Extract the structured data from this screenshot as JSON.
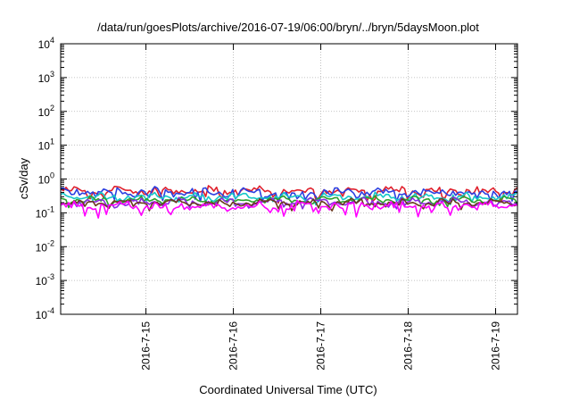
{
  "chart_data": {
    "type": "line",
    "title": "/data/run/goesPlots/archive/2016-07-19/06:00/bryn/../bryn/5daysMoon.plot",
    "xlabel": "Coordinated Universal Time (UTC)",
    "ylabel": "cSv/day",
    "yscale": "log",
    "ylim": [
      0.0001,
      10000
    ],
    "xlim": [
      "2016-07-14 00:35",
      "2016-07-19 06:00"
    ],
    "grid": true,
    "legend": "none",
    "y_ticks": [
      {
        "value": 10000,
        "base": "10",
        "exp": "4"
      },
      {
        "value": 1000,
        "base": "10",
        "exp": "3"
      },
      {
        "value": 100,
        "base": "10",
        "exp": "2"
      },
      {
        "value": 10,
        "base": "10",
        "exp": "1"
      },
      {
        "value": 1,
        "base": "10",
        "exp": "0"
      },
      {
        "value": 0.1,
        "base": "10",
        "exp": "-1"
      },
      {
        "value": 0.01,
        "base": "10",
        "exp": "-2"
      },
      {
        "value": 0.001,
        "base": "10",
        "exp": "-3"
      },
      {
        "value": 0.0001,
        "base": "10",
        "exp": "-4"
      }
    ],
    "x_ticks": [
      {
        "value": "2016-07-15",
        "label": "2016-7-15"
      },
      {
        "value": "2016-07-16",
        "label": "2016-7-16"
      },
      {
        "value": "2016-07-17",
        "label": "2016-7-17"
      },
      {
        "value": "2016-07-18",
        "label": "2016-7-18"
      },
      {
        "value": "2016-07-19",
        "label": "2016-7-19"
      }
    ],
    "series": [
      {
        "color": "#e0202c",
        "level": 0.45,
        "spread": 0.5,
        "seed": 11
      },
      {
        "color": "#2c3fe0",
        "level": 0.4,
        "spread": 0.55,
        "seed": 23
      },
      {
        "color": "#16c8c8",
        "level": 0.3,
        "spread": 0.35,
        "seed": 37
      },
      {
        "color": "#2ca02c",
        "level": 0.24,
        "spread": 0.3,
        "seed": 41
      },
      {
        "color": "#8a2be2",
        "level": 0.21,
        "spread": 0.35,
        "seed": 53
      },
      {
        "color": "#6b3a1f",
        "level": 0.2,
        "spread": 0.3,
        "seed": 67
      },
      {
        "color": "#ff00ff",
        "level": 0.16,
        "spread": 0.6,
        "seed": 79
      }
    ]
  }
}
